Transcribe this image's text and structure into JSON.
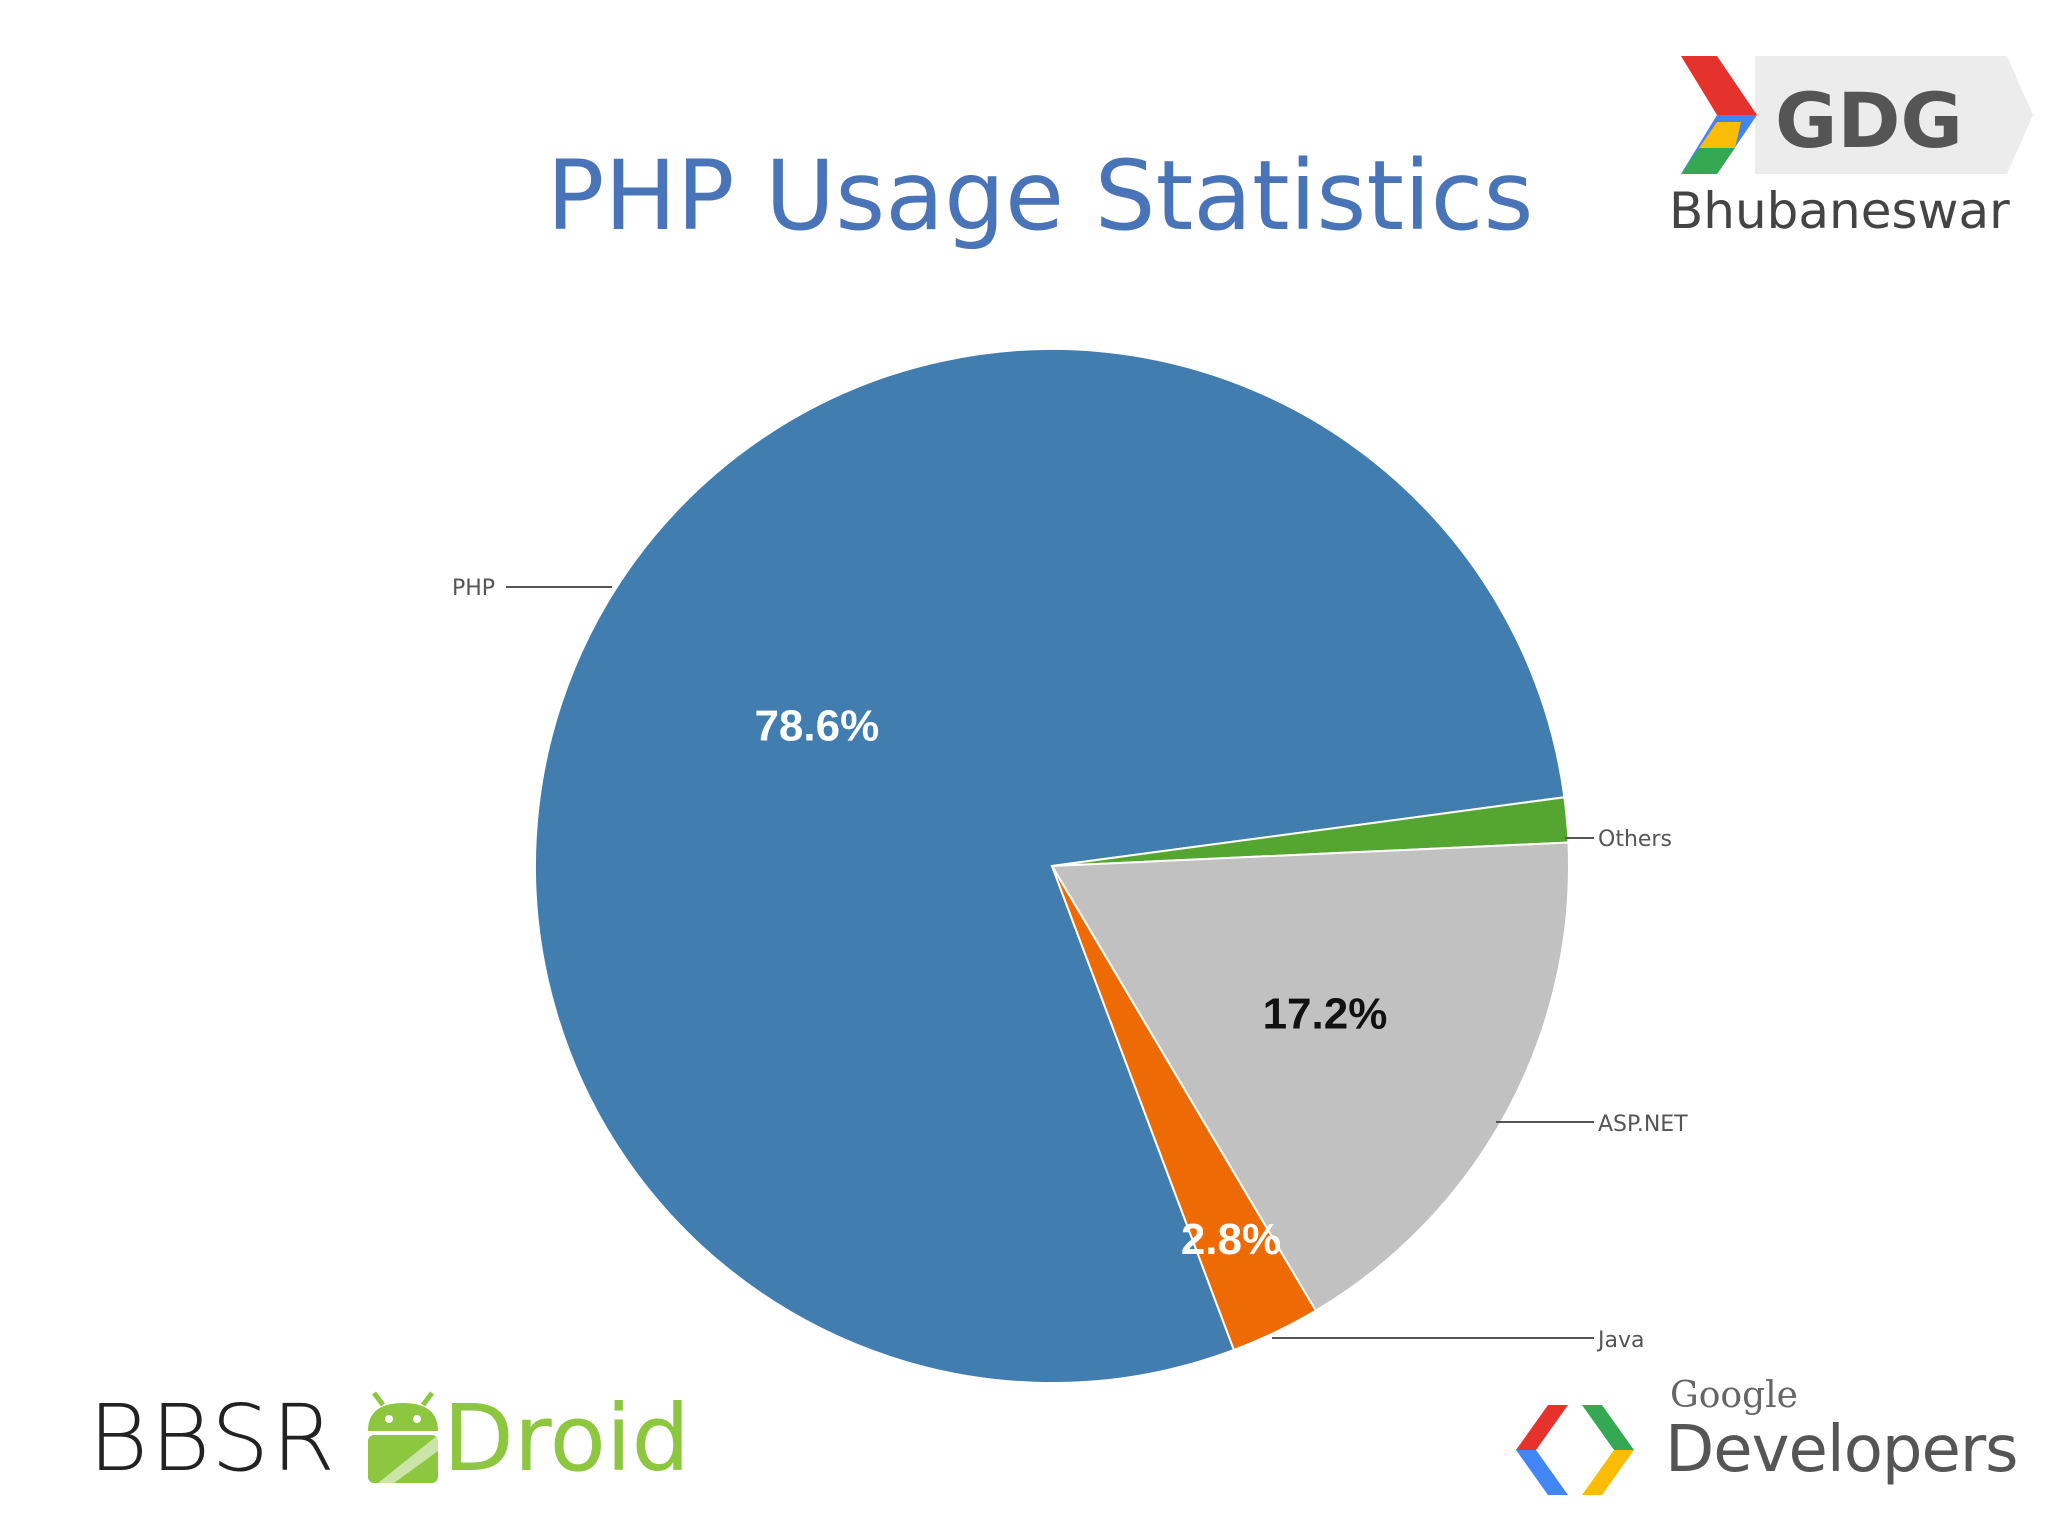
{
  "slide": {
    "title": "PHP Usage Statistics"
  },
  "logos": {
    "gdg": {
      "word": "GDG",
      "city": "Bhubaneswar"
    },
    "bbsr": {
      "word_left": "BBSR",
      "word_right": "Droid"
    },
    "google_developers": {
      "google": "Google",
      "developers": "Developers"
    }
  },
  "chart_data": {
    "type": "pie",
    "title": "",
    "slices": [
      {
        "label": "PHP",
        "value": 78.6,
        "data_label": "78.6%",
        "color": "#417dae",
        "label_color": "#ffffff"
      },
      {
        "label": "Others",
        "value": 1.4,
        "data_label": "",
        "color": "#55a631",
        "label_color": "#ffffff"
      },
      {
        "label": "ASP.NET",
        "value": 17.2,
        "data_label": "17.2%",
        "color": "#c2c1c1",
        "label_color": "#111111"
      },
      {
        "label": "Java",
        "value": 2.8,
        "data_label": "2.8%",
        "color": "#ee6a05",
        "label_color": "#ffffff"
      }
    ],
    "legend": "leader-lines"
  }
}
